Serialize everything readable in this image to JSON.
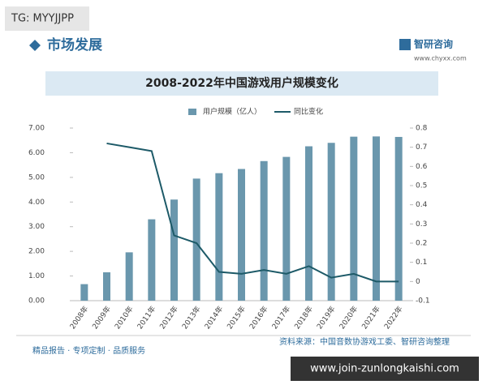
{
  "page": {
    "tag": "TG: MYYJJPP",
    "section": "市场发展",
    "brand": "智研咨询",
    "site": "www.chyxx.com",
    "source": "资料来源：中国音数协游戏工委、智研咨询整理",
    "slogan": "精品报告 · 专项定制 · 品质服务",
    "watermark": "www.join-zunlongkaishi.com"
  },
  "chart_data": {
    "type": "bar",
    "title": "2008-2022年中国游戏用户规模变化",
    "categories": [
      "2008年",
      "2009年",
      "2010年",
      "2011年",
      "2012年",
      "2013年",
      "2014年",
      "2015年",
      "2016年",
      "2017年",
      "2018年",
      "2019年",
      "2020年",
      "2021年",
      "2022年"
    ],
    "series": [
      {
        "name": "用户规模（亿人）",
        "color": "#6a97ad",
        "values": [
          0.67,
          1.15,
          1.96,
          3.3,
          4.1,
          4.95,
          5.17,
          5.34,
          5.66,
          5.83,
          6.26,
          6.4,
          6.65,
          6.66,
          6.64
        ]
      },
      {
        "name": "同比变化",
        "color": "#1d5a68",
        "axis": "y2",
        "type": "line",
        "values": [
          null,
          0.72,
          0.7,
          0.68,
          0.24,
          0.2,
          0.05,
          0.04,
          0.06,
          0.04,
          0.08,
          0.02,
          0.04,
          0.0,
          0.0
        ]
      }
    ],
    "ylim": [
      0,
      7
    ],
    "yticks": [
      {
        "value": 0,
        "label": "0.00"
      },
      {
        "value": 1,
        "label": "1.00"
      },
      {
        "value": 2,
        "label": "2.00"
      },
      {
        "value": 3,
        "label": "3.00"
      },
      {
        "value": 4,
        "label": "4.00"
      },
      {
        "value": 5,
        "label": "5.00"
      },
      {
        "value": 6,
        "label": "6.00"
      },
      {
        "value": 7,
        "label": "7.00"
      }
    ],
    "y2lim": [
      -0.1,
      0.8
    ],
    "y2ticks": [
      -0.1,
      0,
      0.1,
      0.2,
      0.3,
      0.4,
      0.5,
      0.6,
      0.7,
      0.8
    ],
    "legend": "top"
  }
}
